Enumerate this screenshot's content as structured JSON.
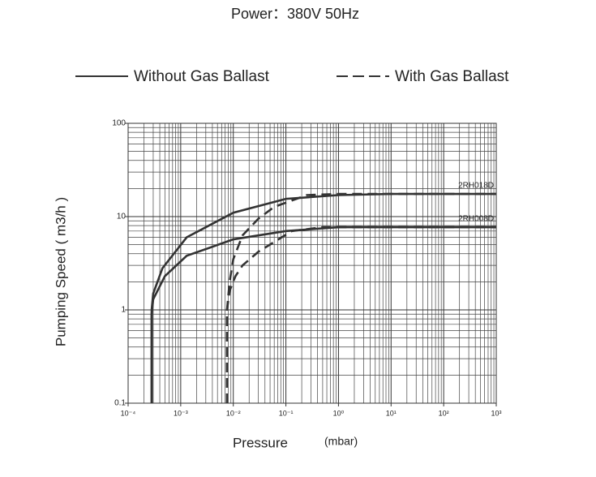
{
  "chart_data": {
    "type": "line",
    "title": "Power：380V 50Hz",
    "x_label": "Pressure",
    "x_unit": "(mbar)",
    "y_label": "Pumping Speed ( m3/h )",
    "log_x": true,
    "log_y": true,
    "grid": true,
    "legend": [
      {
        "label": "Without Gas Ballast",
        "dashed": false
      },
      {
        "label": "With Gas Ballast",
        "dashed": true
      }
    ],
    "color": "#333333",
    "xlim": [
      0.0001,
      1000
    ],
    "ylim": [
      0.1,
      100
    ],
    "xticks": [
      {
        "value": 0.0001,
        "label": "10⁻⁴"
      },
      {
        "value": 0.001,
        "label": "10⁻³"
      },
      {
        "value": 0.01,
        "label": "10⁻²"
      },
      {
        "value": 0.1,
        "label": "10⁻¹"
      },
      {
        "value": 1,
        "label": "10⁰"
      },
      {
        "value": 10,
        "label": "10¹"
      },
      {
        "value": 100,
        "label": "10²"
      },
      {
        "value": 1000,
        "label": "10³"
      }
    ],
    "yticks": [
      0.1,
      1,
      10,
      100
    ],
    "series": [
      {
        "name": "2RH018D",
        "legend": 0,
        "x": [
          0.00028,
          0.00028,
          0.0003,
          0.00045,
          0.0013,
          0.01,
          0.1,
          1,
          10,
          1000
        ],
        "values": [
          0.1,
          1,
          1.5,
          2.8,
          6,
          11,
          15.5,
          17,
          17.5,
          17.5
        ]
      },
      {
        "name": "2RH008D",
        "legend": 0,
        "x": [
          0.00028,
          0.00028,
          0.0003,
          0.0005,
          0.0013,
          0.01,
          0.1,
          1,
          1000
        ],
        "values": [
          0.1,
          0.9,
          1.3,
          2.3,
          3.8,
          5.7,
          7,
          7.7,
          7.7
        ]
      },
      {
        "legend": 1,
        "x": [
          0.0076,
          0.0076,
          0.0085,
          0.01,
          0.015,
          0.03,
          0.06,
          0.25,
          1,
          1000
        ],
        "values": [
          0.1,
          1,
          2,
          3.5,
          6.3,
          9.5,
          12.7,
          17,
          17.5,
          17.5
        ]
      },
      {
        "legend": 1,
        "x": [
          0.0076,
          0.0076,
          0.0085,
          0.011,
          0.015,
          0.03,
          0.13,
          0.5,
          1000
        ],
        "values": [
          0.1,
          1,
          1.6,
          2.3,
          3,
          4.2,
          7,
          7.7,
          7.7
        ]
      }
    ]
  }
}
